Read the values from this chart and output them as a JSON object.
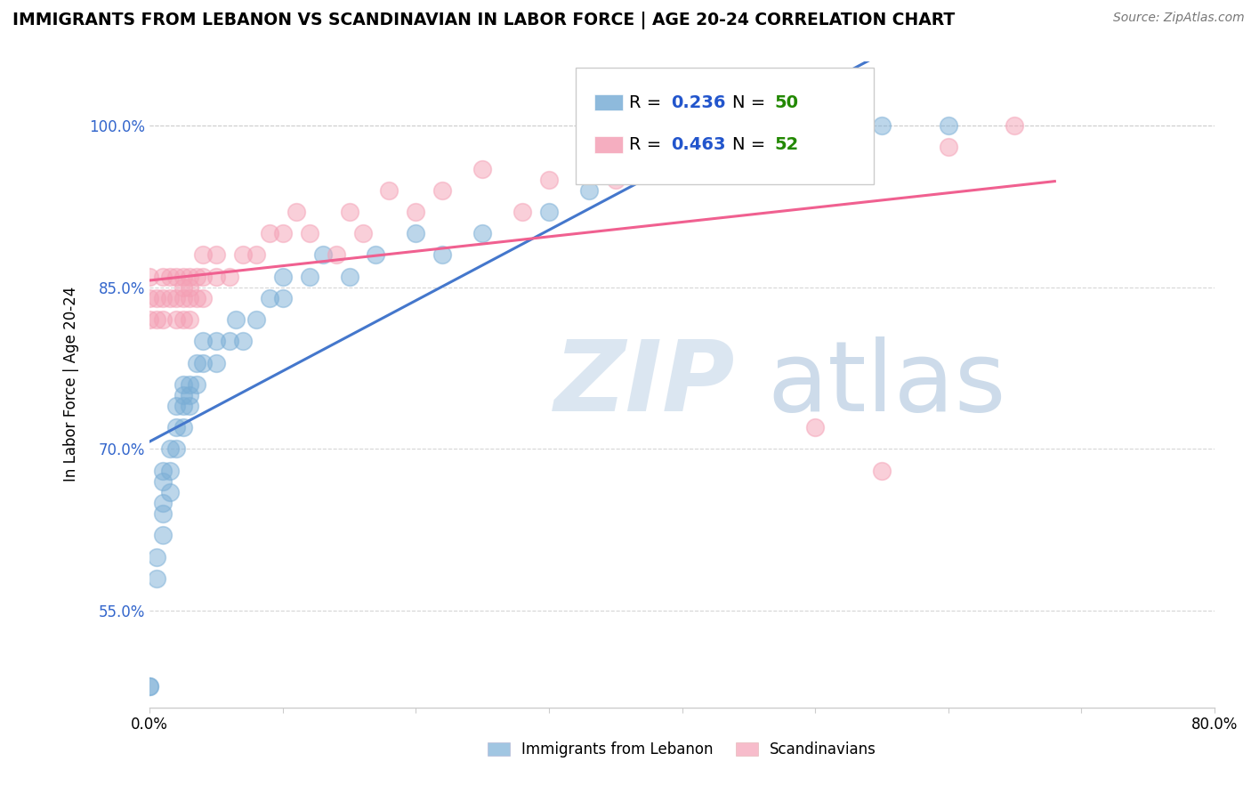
{
  "title": "IMMIGRANTS FROM LEBANON VS SCANDINAVIAN IN LABOR FORCE | AGE 20-24 CORRELATION CHART",
  "source": "Source: ZipAtlas.com",
  "ylabel": "In Labor Force | Age 20-24",
  "xlim": [
    0.0,
    0.8
  ],
  "ylim": [
    0.46,
    1.06
  ],
  "ytick_positions": [
    0.55,
    0.7,
    0.85,
    1.0
  ],
  "ytick_labels": [
    "55.0%",
    "70.0%",
    "85.0%",
    "100.0%"
  ],
  "lebanon_color": "#7aaed6",
  "scandinavian_color": "#f4a0b5",
  "lebanon_line_color": "#4477cc",
  "scandinavian_line_color": "#f06090",
  "lebanon_R": 0.236,
  "lebanon_N": 50,
  "scandinavian_R": 0.463,
  "scandinavian_N": 52,
  "legend_R_color": "#2255cc",
  "legend_N_color": "#228800",
  "lebanon_x": [
    0.0,
    0.0,
    0.005,
    0.005,
    0.01,
    0.01,
    0.01,
    0.01,
    0.01,
    0.015,
    0.015,
    0.015,
    0.02,
    0.02,
    0.02,
    0.025,
    0.025,
    0.025,
    0.025,
    0.03,
    0.03,
    0.03,
    0.035,
    0.035,
    0.04,
    0.04,
    0.05,
    0.05,
    0.06,
    0.065,
    0.07,
    0.08,
    0.09,
    0.1,
    0.1,
    0.12,
    0.13,
    0.15,
    0.17,
    0.2,
    0.22,
    0.25,
    0.3,
    0.33,
    0.38,
    0.4,
    0.45,
    0.5,
    0.55,
    0.6
  ],
  "lebanon_y": [
    0.48,
    0.48,
    0.58,
    0.6,
    0.62,
    0.64,
    0.65,
    0.67,
    0.68,
    0.66,
    0.68,
    0.7,
    0.7,
    0.72,
    0.74,
    0.72,
    0.74,
    0.75,
    0.76,
    0.74,
    0.75,
    0.76,
    0.76,
    0.78,
    0.78,
    0.8,
    0.78,
    0.8,
    0.8,
    0.82,
    0.8,
    0.82,
    0.84,
    0.84,
    0.86,
    0.86,
    0.88,
    0.86,
    0.88,
    0.9,
    0.88,
    0.9,
    0.92,
    0.94,
    0.96,
    0.96,
    0.98,
    1.0,
    1.0,
    1.0
  ],
  "scandinavian_x": [
    0.0,
    0.0,
    0.0,
    0.005,
    0.005,
    0.01,
    0.01,
    0.01,
    0.015,
    0.015,
    0.02,
    0.02,
    0.02,
    0.025,
    0.025,
    0.025,
    0.025,
    0.03,
    0.03,
    0.03,
    0.03,
    0.035,
    0.035,
    0.04,
    0.04,
    0.04,
    0.05,
    0.05,
    0.06,
    0.07,
    0.08,
    0.09,
    0.1,
    0.11,
    0.12,
    0.14,
    0.15,
    0.16,
    0.18,
    0.2,
    0.22,
    0.25,
    0.28,
    0.3,
    0.35,
    0.38,
    0.42,
    0.46,
    0.5,
    0.55,
    0.6,
    0.65
  ],
  "scandinavian_y": [
    0.82,
    0.84,
    0.86,
    0.82,
    0.84,
    0.82,
    0.84,
    0.86,
    0.84,
    0.86,
    0.82,
    0.84,
    0.86,
    0.82,
    0.84,
    0.85,
    0.86,
    0.82,
    0.84,
    0.85,
    0.86,
    0.84,
    0.86,
    0.84,
    0.86,
    0.88,
    0.86,
    0.88,
    0.86,
    0.88,
    0.88,
    0.9,
    0.9,
    0.92,
    0.9,
    0.88,
    0.92,
    0.9,
    0.94,
    0.92,
    0.94,
    0.96,
    0.92,
    0.95,
    0.95,
    0.97,
    0.96,
    0.98,
    0.72,
    0.68,
    0.98,
    1.0
  ]
}
